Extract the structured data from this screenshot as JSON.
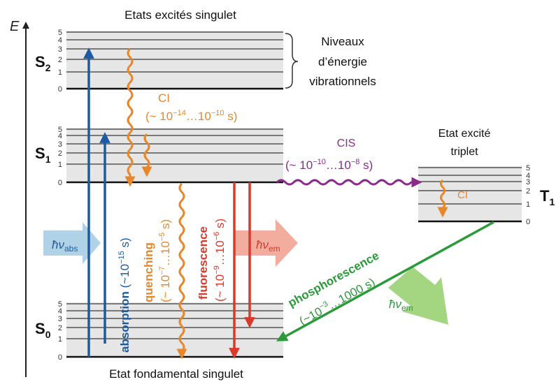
{
  "diagram": {
    "energy_axis_label": "E",
    "title_top": "Etats excités singulet",
    "title_bottom": "Etat fondamental singulet",
    "triplet_title_line1": "Etat excité",
    "triplet_title_line2": "triplet",
    "vib_label_line1": "Niveaux",
    "vib_label_line2": "d’énergie",
    "vib_label_line3": "vibrationnels",
    "level_numbers": [
      "0",
      "1",
      "2",
      "3",
      "4",
      "5"
    ],
    "states": {
      "s2": {
        "letter": "S",
        "sub": "2"
      },
      "s1": {
        "letter": "S",
        "sub": "1"
      },
      "s0": {
        "letter": "S",
        "sub": "0"
      },
      "t1": {
        "letter": "T",
        "sub": "1"
      }
    },
    "ic_label": "CI",
    "ic_time": {
      "prefix": "(~ 10",
      "exp1": "−14",
      "mid": "…10",
      "exp2": "−10",
      "suffix": " s)"
    },
    "isc_label": "CIS",
    "isc_time": {
      "prefix": "(~ 10",
      "exp1": "−10",
      "mid": "…10",
      "exp2": "−8",
      "suffix": " s)"
    },
    "triplet_ic_label": "CI",
    "absorption": {
      "name": "absorption",
      "time_prefix": " (~10",
      "exp": "−15",
      "time_suffix": " s)"
    },
    "quenching": {
      "name": "quenching",
      "time_prefix": "(~ 10",
      "exp1": "−7",
      "mid": "…10",
      "exp2": "−5",
      "suffix": " s)"
    },
    "fluorescence": {
      "name": "fluorescence",
      "time_prefix": "(~ 10",
      "exp1": "−9",
      "mid": "…10",
      "exp2": "−6",
      "suffix": " s)"
    },
    "phosphorescence": {
      "name": "phosphorescence",
      "time_prefix": "(~10",
      "exp": "−3",
      "time_suffix": "…1000 s)"
    },
    "photon_abs": {
      "h": "ħν",
      "sub": "abs"
    },
    "photon_em": {
      "h": "ħν",
      "sub": "em"
    },
    "photon_em_phos": {
      "h": "ħν",
      "sub": "em"
    },
    "colors": {
      "absorption": "#1e5aa0",
      "ic": "#e8872a",
      "fluorescence": "#d83a2c",
      "isc": "#8c2a8c",
      "phosphorescence": "#2a9a3a",
      "photon_abs": "#a7cde4",
      "photon_em": "#f2a494",
      "photon_em_phos": "#9fd37a",
      "band_fill": "#e6e6e6",
      "level_line": "#555555",
      "ground_line": "#111111"
    }
  }
}
